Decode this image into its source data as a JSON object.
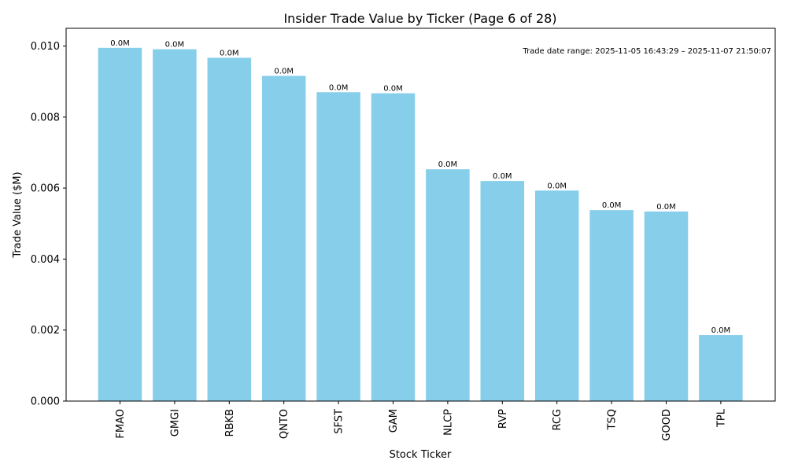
{
  "chart_data": {
    "type": "bar",
    "title": "Insider Trade Value by Ticker (Page 6 of 28)",
    "xlabel": "Stock Ticker",
    "ylabel": "Trade Value ($M)",
    "ylim": [
      0,
      0.0105
    ],
    "yticks": [
      "0.000",
      "0.002",
      "0.004",
      "0.006",
      "0.008",
      "0.010"
    ],
    "categories": [
      "FMAO",
      "GMGI",
      "RBKB",
      "QNTO",
      "SFST",
      "GAM",
      "NLCP",
      "RVP",
      "RCG",
      "TSQ",
      "GOOD",
      "TPL"
    ],
    "values": [
      0.00995,
      0.00991,
      0.00967,
      0.00916,
      0.0087,
      0.00867,
      0.00653,
      0.0062,
      0.00593,
      0.00538,
      0.00534,
      0.00186
    ],
    "data_labels": [
      "0.0M",
      "0.0M",
      "0.0M",
      "0.0M",
      "0.0M",
      "0.0M",
      "0.0M",
      "0.0M",
      "0.0M",
      "0.0M",
      "0.0M",
      "0.0M"
    ],
    "annotation": "Trade date range: 2025-11-05 16:43:29 – 2025-11-07 21:50:07",
    "bar_color": "#87ceeb",
    "grid": false
  }
}
